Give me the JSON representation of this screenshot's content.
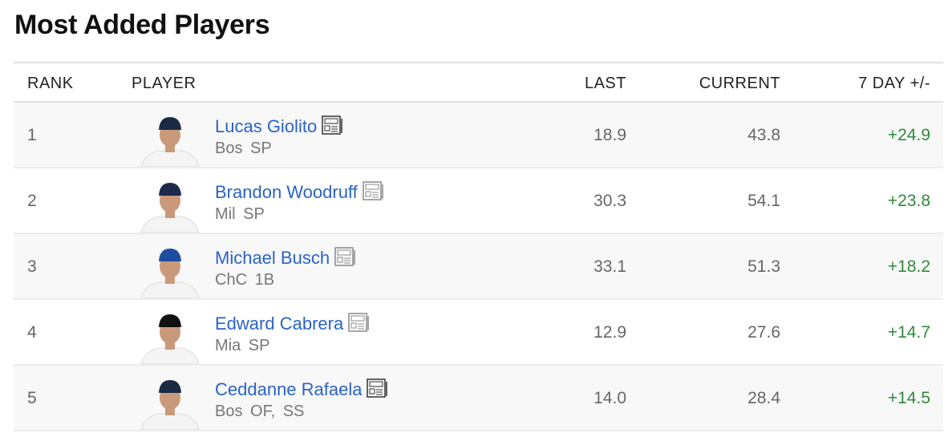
{
  "title": "Most Added Players",
  "columns": {
    "rank": "RANK",
    "player": "PLAYER",
    "last": "LAST",
    "current": "CURRENT",
    "change": "7 DAY +/-"
  },
  "colors": {
    "link": "#2a63c9",
    "positive": "#2e8b3a"
  },
  "players": [
    {
      "rank": "1",
      "name": "Lucas Giolito",
      "meta": "Bos SP",
      "last": "18.9",
      "current": "43.8",
      "change": "+24.9",
      "cap": "#1b2a44",
      "news_icon": "newspaper-icon"
    },
    {
      "rank": "2",
      "name": "Brandon Woodruff",
      "meta": "Mil SP",
      "last": "30.3",
      "current": "54.1",
      "change": "+23.8",
      "cap": "#1c2a4a",
      "news_icon": "newspaper-icon"
    },
    {
      "rank": "3",
      "name": "Michael Busch",
      "meta": "ChC 1B",
      "last": "33.1",
      "current": "51.3",
      "change": "+18.2",
      "cap": "#1f4ea0",
      "news_icon": "newspaper-icon"
    },
    {
      "rank": "4",
      "name": "Edward Cabrera",
      "meta": "Mia SP",
      "last": "12.9",
      "current": "27.6",
      "change": "+14.7",
      "cap": "#111111",
      "news_icon": "newspaper-icon"
    },
    {
      "rank": "5",
      "name": "Ceddanne Rafaela",
      "meta": "Bos OF, SS",
      "last": "14.0",
      "current": "28.4",
      "change": "+14.5",
      "cap": "#1b2a44",
      "news_icon": "newspaper-icon"
    }
  ]
}
